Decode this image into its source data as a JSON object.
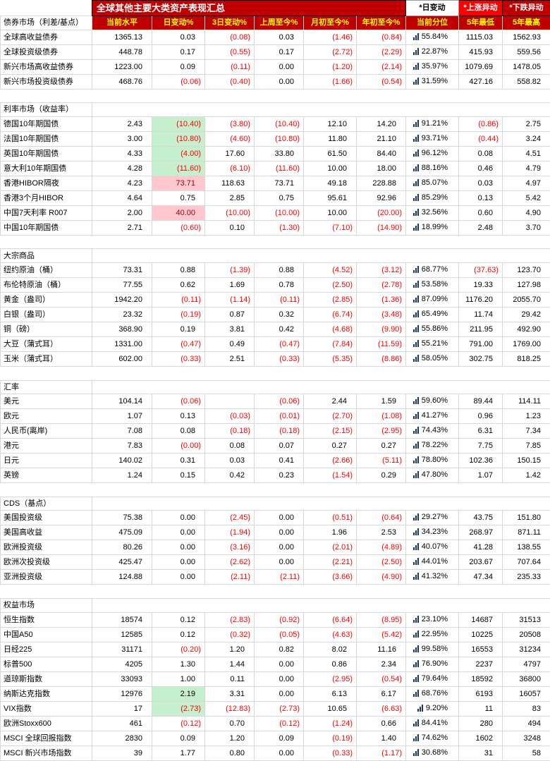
{
  "title": "全球其他主要大类资产表现汇总",
  "legend": {
    "daily": "*日变动",
    "up": "*上涨异动",
    "down": "*下跌异动"
  },
  "colors": {
    "header_bg": "#C00000",
    "header_text": "#FFFF00",
    "negative": "#FF0000",
    "highlight_up_bg": "#FFC7CE",
    "highlight_up_text": "#9C0006",
    "highlight_down_bg": "#C6EFCE",
    "percentile_bar": "#17375E",
    "legend_up_bg": "#FF0000",
    "legend_down_bg": "#C00000"
  },
  "table": {
    "columns": [
      "当前水平",
      "日变动%",
      "3日变动%",
      "上周至今%",
      "月初至今%",
      "年初至今%",
      "当前分位",
      "5年最低",
      "5年最高"
    ],
    "sections": [
      {
        "label": "债券市场（利差/基点）",
        "rows": [
          {
            "name": "全球高收益债券",
            "values": [
              "1365.13",
              "0.03",
              "(0.08)",
              "0.03",
              "(1.46)",
              "(0.84)",
              "55.84%",
              "1115.03",
              "1562.93"
            ]
          },
          {
            "name": "全球投资级债券",
            "values": [
              "448.78",
              "0.17",
              "(0.55)",
              "0.17",
              "(2.72)",
              "(2.29)",
              "22.87%",
              "415.93",
              "559.56"
            ]
          },
          {
            "name": "新兴市场高收益债券",
            "values": [
              "1223.00",
              "0.09",
              "(0.11)",
              "0.00",
              "(1.20)",
              "(2.14)",
              "35.97%",
              "1079.69",
              "1478.05"
            ]
          },
          {
            "name": "新兴市场投资级债券",
            "values": [
              "468.76",
              "(0.06)",
              "(0.40)",
              "0.00",
              "(1.66)",
              "(0.54)",
              "31.59%",
              "427.16",
              "558.82"
            ]
          }
        ]
      },
      {
        "label": "利率市场（收益率）",
        "rows": [
          {
            "name": "德国10年期国债",
            "values": [
              "2.43",
              "(10.40)",
              "(3.80)",
              "(10.40)",
              "12.10",
              "14.20",
              "91.21%",
              "(0.86)",
              "2.75"
            ],
            "hl": {
              "1": "green"
            }
          },
          {
            "name": "法国10年期国债",
            "values": [
              "3.00",
              "(10.80)",
              "(4.60)",
              "(10.80)",
              "11.80",
              "21.10",
              "93.71%",
              "(0.44)",
              "3.24"
            ],
            "hl": {
              "1": "green"
            }
          },
          {
            "name": "英国10年期国债",
            "values": [
              "4.33",
              "(4.00)",
              "17.60",
              "33.80",
              "61.50",
              "84.40",
              "96.12%",
              "0.08",
              "4.51"
            ],
            "hl": {
              "1": "green"
            }
          },
          {
            "name": "意大利10年期国债",
            "values": [
              "4.28",
              "(11.60)",
              "(6.10)",
              "(11.60)",
              "10.00",
              "18.00",
              "88.16%",
              "0.46",
              "4.79"
            ],
            "hl": {
              "1": "green"
            }
          },
          {
            "name": "香港HIBOR隔夜",
            "values": [
              "4.23",
              "73.71",
              "118.63",
              "73.71",
              "49.18",
              "228.88",
              "85.07%",
              "0.03",
              "4.97"
            ],
            "hl": {
              "1": "pink"
            }
          },
          {
            "name": "香港3个月HIBOR",
            "values": [
              "4.64",
              "0.75",
              "2.85",
              "0.75",
              "95.61",
              "92.96",
              "85.29%",
              "0.13",
              "5.42"
            ]
          },
          {
            "name": "中国7天利率 R007",
            "values": [
              "2.00",
              "40.00",
              "(10.00)",
              "(10.00)",
              "10.00",
              "(20.00)",
              "32.56%",
              "0.60",
              "4.90"
            ],
            "hl": {
              "1": "pink"
            }
          },
          {
            "name": "中国10年期国债",
            "values": [
              "2.71",
              "(0.60)",
              "0.10",
              "(1.30)",
              "(7.10)",
              "(14.90)",
              "18.99%",
              "2.48",
              "3.70"
            ]
          }
        ]
      },
      {
        "label": "大宗商品",
        "rows": [
          {
            "name": "纽约原油（桶）",
            "values": [
              "73.31",
              "0.88",
              "(1.39)",
              "0.88",
              "(4.52)",
              "(3.12)",
              "68.77%",
              "(37.63)",
              "123.70"
            ]
          },
          {
            "name": "布伦特原油（桶）",
            "values": [
              "77.55",
              "0.62",
              "1.69",
              "0.78",
              "(2.50)",
              "(2.78)",
              "53.58%",
              "19.33",
              "127.98"
            ]
          },
          {
            "name": "黄金（盎司）",
            "values": [
              "1942.20",
              "(0.11)",
              "(1.14)",
              "(0.11)",
              "(2.85)",
              "(1.36)",
              "87.09%",
              "1176.20",
              "2055.70"
            ]
          },
          {
            "name": "白银（盎司）",
            "values": [
              "23.32",
              "(0.19)",
              "0.87",
              "0.32",
              "(6.74)",
              "(3.48)",
              "65.49%",
              "11.74",
              "29.42"
            ]
          },
          {
            "name": "铜（磅）",
            "values": [
              "368.90",
              "0.19",
              "3.81",
              "0.42",
              "(4.68)",
              "(9.90)",
              "55.86%",
              "211.95",
              "492.90"
            ]
          },
          {
            "name": "大豆（蒲式耳）",
            "values": [
              "1331.00",
              "(0.47)",
              "0.49",
              "(0.47)",
              "(7.84)",
              "(11.59)",
              "55.21%",
              "791.00",
              "1769.00"
            ]
          },
          {
            "name": "玉米（蒲式耳）",
            "values": [
              "602.00",
              "(0.33)",
              "2.51",
              "(0.33)",
              "(5.35)",
              "(8.86)",
              "58.05%",
              "302.75",
              "818.25"
            ]
          }
        ]
      },
      {
        "label": "汇率",
        "rows": [
          {
            "name": "美元",
            "values": [
              "104.14",
              "(0.06)",
              "",
              "(0.06)",
              "2.44",
              "1.59",
              "59.60%",
              "89.44",
              "114.11"
            ]
          },
          {
            "name": "欧元",
            "values": [
              "1.07",
              "0.13",
              "(0.03)",
              "(0.01)",
              "(2.70)",
              "(1.08)",
              "41.27%",
              "0.96",
              "1.23"
            ]
          },
          {
            "name": "人民币(离岸)",
            "values": [
              "7.08",
              "0.08",
              "(0.18)",
              "(0.18)",
              "(2.15)",
              "(2.95)",
              "74.43%",
              "6.31",
              "7.34"
            ]
          },
          {
            "name": "港元",
            "values": [
              "7.83",
              "(0.00)",
              "0.08",
              "0.07",
              "0.27",
              "0.27",
              "78.22%",
              "7.75",
              "7.85"
            ]
          },
          {
            "name": "日元",
            "values": [
              "140.02",
              "0.31",
              "0.03",
              "0.41",
              "(2.66)",
              "(5.11)",
              "78.80%",
              "102.36",
              "150.15"
            ]
          },
          {
            "name": "英镑",
            "values": [
              "1.24",
              "0.15",
              "0.42",
              "0.23",
              "(1.54)",
              "0.29",
              "47.80%",
              "1.07",
              "1.42"
            ]
          }
        ]
      },
      {
        "label": "CDS（基点）",
        "rows": [
          {
            "name": "美国投资级",
            "values": [
              "75.38",
              "0.00",
              "(2.45)",
              "0.00",
              "(0.51)",
              "(0.64)",
              "29.27%",
              "43.75",
              "151.80"
            ]
          },
          {
            "name": "美国高收益",
            "values": [
              "475.09",
              "0.00",
              "(1.94)",
              "0.00",
              "1.96",
              "2.53",
              "34.23%",
              "268.97",
              "871.11"
            ]
          },
          {
            "name": "欧洲投资级",
            "values": [
              "80.26",
              "0.00",
              "(3.16)",
              "0.00",
              "(2.01)",
              "(4.89)",
              "40.07%",
              "41.28",
              "138.55"
            ]
          },
          {
            "name": "欧洲次投资级",
            "values": [
              "425.47",
              "0.00",
              "(2.62)",
              "0.00",
              "(2.21)",
              "(2.50)",
              "44.01%",
              "203.67",
              "707.64"
            ]
          },
          {
            "name": "亚洲投资级",
            "values": [
              "124.88",
              "0.00",
              "(2.11)",
              "(2.11)",
              "(3.66)",
              "(4.90)",
              "41.32%",
              "47.34",
              "235.33"
            ]
          }
        ]
      },
      {
        "label": "权益市场",
        "rows": [
          {
            "name": "恒生指数",
            "values": [
              "18574",
              "0.12",
              "(2.83)",
              "(0.92)",
              "(6.64)",
              "(8.95)",
              "23.10%",
              "14687",
              "31513"
            ]
          },
          {
            "name": "中国A50",
            "values": [
              "12585",
              "0.12",
              "(0.32)",
              "(0.05)",
              "(4.63)",
              "(5.42)",
              "22.95%",
              "10225",
              "20508"
            ]
          },
          {
            "name": "日经225",
            "values": [
              "31171",
              "(0.20)",
              "1.20",
              "0.82",
              "8.02",
              "11.16",
              "99.58%",
              "16553",
              "31234"
            ]
          },
          {
            "name": "标普500",
            "values": [
              "4205",
              "1.30",
              "1.44",
              "0.00",
              "0.86",
              "2.34",
              "76.90%",
              "2237",
              "4797"
            ]
          },
          {
            "name": "道琼斯指数",
            "values": [
              "33093",
              "1.00",
              "0.11",
              "0.00",
              "(2.95)",
              "(0.54)",
              "79.64%",
              "18592",
              "36800"
            ]
          },
          {
            "name": "纳斯达克指数",
            "values": [
              "12976",
              "2.19",
              "3.31",
              "0.00",
              "6.13",
              "6.17",
              "68.76%",
              "6193",
              "16057"
            ],
            "hl": {
              "1": "green"
            }
          },
          {
            "name": "VIX指数",
            "values": [
              "17",
              "(2.73)",
              "(12.83)",
              "(2.73)",
              "10.65",
              "(6.63)",
              "9.20%",
              "11",
              "83"
            ],
            "hl": {
              "1": "green"
            }
          },
          {
            "name": "欧洲Stoxx600",
            "values": [
              "461",
              "(0.12)",
              "0.70",
              "(0.12)",
              "(1.24)",
              "0.66",
              "84.41%",
              "280",
              "494"
            ]
          },
          {
            "name": "MSCI 全球回报指数",
            "values": [
              "2830",
              "0.09",
              "1.20",
              "0.09",
              "(0.19)",
              "1.40",
              "74.62%",
              "1602",
              "3248"
            ]
          },
          {
            "name": "MSCI 新兴市场指数",
            "values": [
              "39",
              "1.77",
              "0.80",
              "0.00",
              "(0.33)",
              "(1.17)",
              "30.68%",
              "31",
              "58"
            ]
          }
        ]
      }
    ]
  }
}
